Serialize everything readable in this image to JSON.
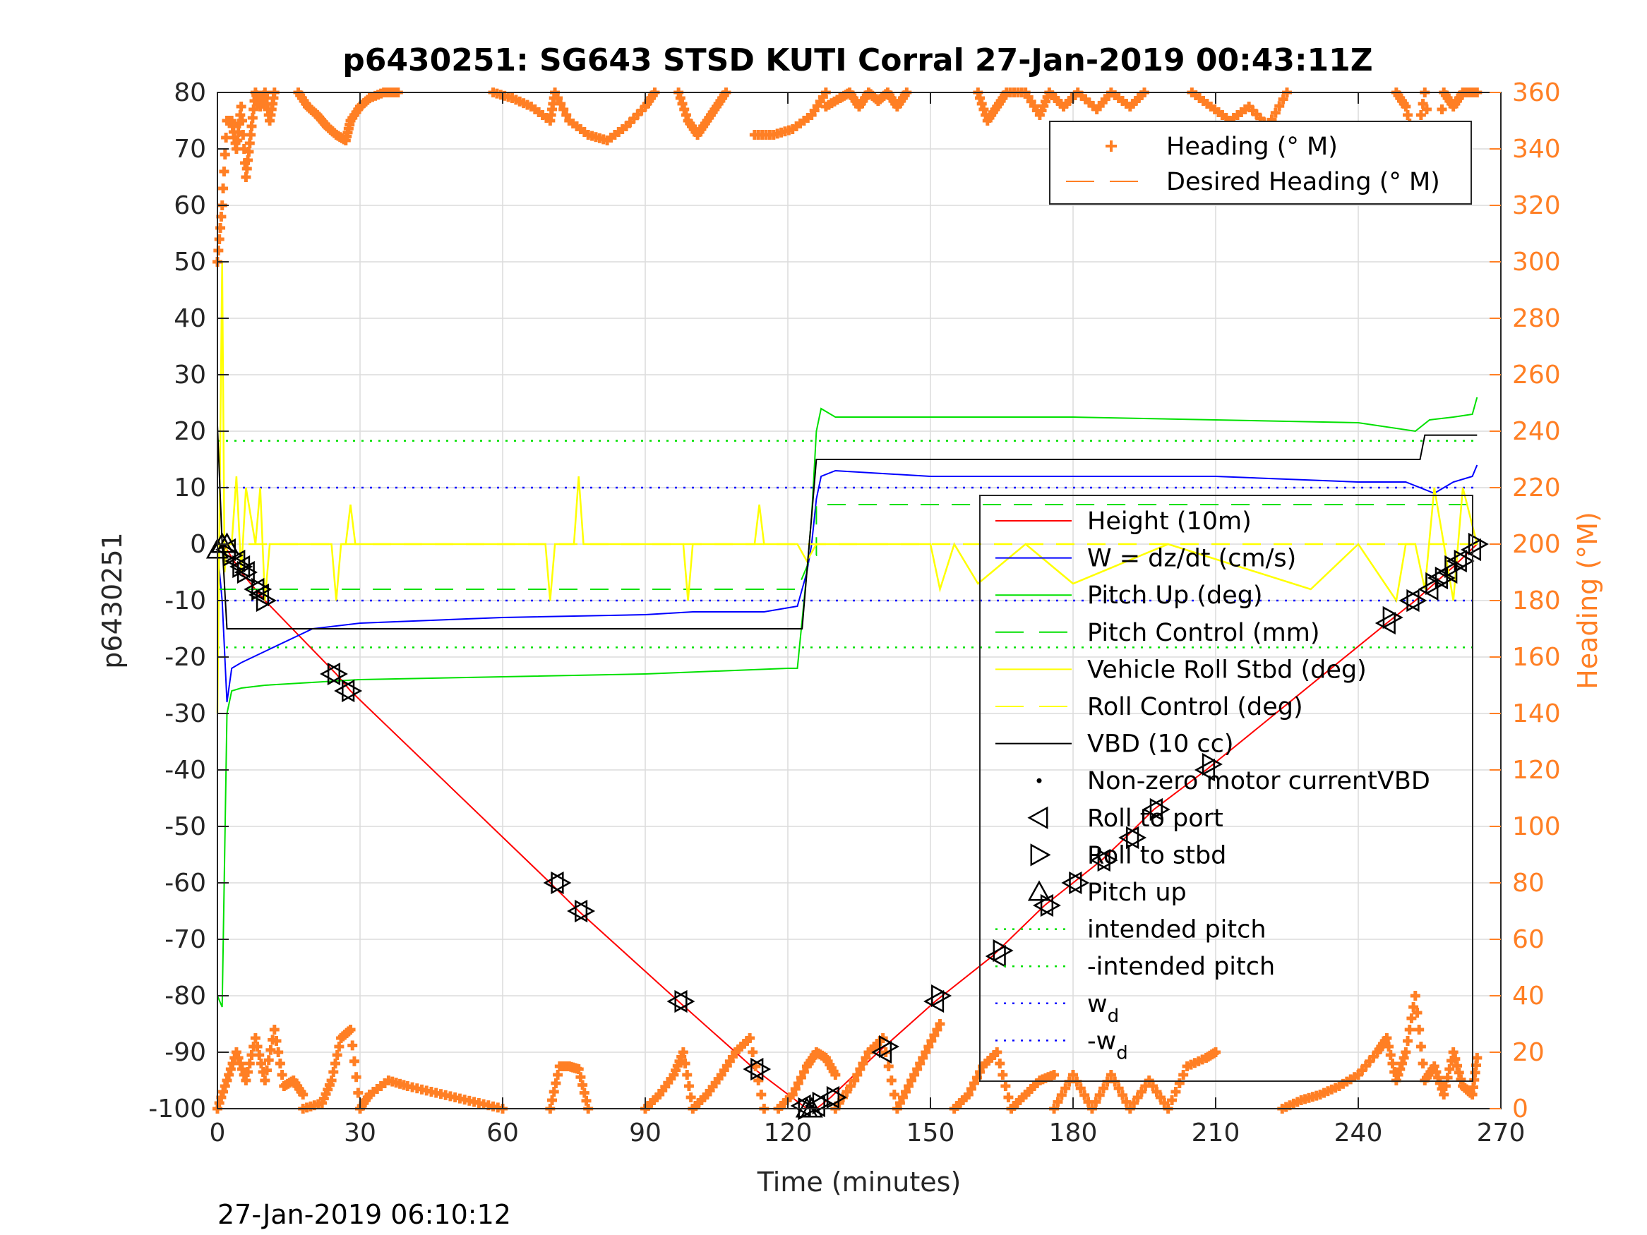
{
  "chart_data": {
    "type": "line",
    "title": "p6430251: SG643 STSD KUTI Corral 27-Jan-2019 00:43:11Z",
    "xlabel": "Time (minutes)",
    "ylabel": "p6430251",
    "y2label": "Heading (°M)",
    "footer": "27-Jan-2019 06:10:12",
    "xlim": [
      0,
      270
    ],
    "ylim": [
      -100,
      80
    ],
    "y2lim": [
      0,
      360
    ],
    "xticks": [
      0,
      30,
      60,
      90,
      120,
      150,
      180,
      210,
      240,
      270
    ],
    "yticks": [
      -100,
      -90,
      -80,
      -70,
      -60,
      -50,
      -40,
      -30,
      -20,
      -10,
      0,
      10,
      20,
      30,
      40,
      50,
      60,
      70,
      80
    ],
    "y2ticks": [
      0,
      20,
      40,
      60,
      80,
      100,
      120,
      140,
      160,
      180,
      200,
      220,
      240,
      260,
      280,
      300,
      320,
      340,
      360
    ],
    "grid": true,
    "legend_top": [
      {
        "label": "Heading (° M)",
        "color": "#ff7f24",
        "style": "plus"
      },
      {
        "label": "Desired Heading (° M)",
        "color": "#ff7f24",
        "style": "dash"
      }
    ],
    "legend_main": [
      {
        "label": "Height (10m)",
        "color": "#ff0000",
        "style": "solid"
      },
      {
        "label": "W = dz/dt (cm/s)",
        "color": "#0000ff",
        "style": "solid"
      },
      {
        "label": "Pitch Up (deg)",
        "color": "#00e000",
        "style": "solid"
      },
      {
        "label": "Pitch Control (mm)",
        "color": "#00e000",
        "style": "dash"
      },
      {
        "label": "Vehicle Roll Stbd (deg)",
        "color": "#ffff00",
        "style": "solid"
      },
      {
        "label": "Roll Control (deg)",
        "color": "#ffff00",
        "style": "dash"
      },
      {
        "label": "VBD (10 cc)",
        "color": "#000000",
        "style": "solid"
      },
      {
        "label": "Non-zero motor currentVBD",
        "color": "#000000",
        "style": "dot"
      },
      {
        "label": "Roll to port",
        "color": "#000000",
        "style": "tri-left"
      },
      {
        "label": "Roll to stbd",
        "color": "#000000",
        "style": "tri-right"
      },
      {
        "label": "Pitch up",
        "color": "#000000",
        "style": "tri-up"
      },
      {
        "label": "intended pitch",
        "color": "#00e000",
        "style": "dotted"
      },
      {
        "label": "-intended pitch",
        "color": "#00e000",
        "style": "dotted"
      },
      {
        "label": "w",
        "sub": "d",
        "color": "#0000ff",
        "style": "dotted"
      },
      {
        "label": "-w",
        "sub": "d",
        "color": "#0000ff",
        "style": "dotted"
      }
    ],
    "series": [
      {
        "name": "Height (10m)",
        "color": "#ff0000",
        "x": [
          0,
          1,
          2,
          5,
          10,
          25,
          28,
          70,
          76,
          97,
          113,
          124,
          126,
          129,
          139,
          151,
          163,
          174,
          180,
          186,
          191,
          197,
          208,
          246,
          252,
          256,
          260,
          265
        ],
        "y": [
          -1,
          0,
          -1,
          -5,
          -10,
          -23,
          -26,
          -60,
          -65,
          -81,
          -93,
          -100,
          -100,
          -98,
          -90,
          -81,
          -73,
          -64,
          -60,
          -56,
          -52,
          -47,
          -40,
          -14,
          -10,
          -7,
          -4,
          0
        ]
      },
      {
        "name": "W = dz/dt (cm/s)",
        "color": "#0000ff",
        "x": [
          0,
          1,
          2,
          3,
          5,
          10,
          20,
          30,
          60,
          90,
          100,
          115,
          122,
          124,
          125,
          126,
          127,
          130,
          150,
          180,
          210,
          240,
          250,
          256,
          260,
          264,
          265
        ],
        "y": [
          -1,
          -10,
          -28,
          -22,
          -21,
          -19,
          -15,
          -14,
          -13,
          -12.5,
          -12,
          -12,
          -11,
          -5,
          0,
          8,
          12,
          13,
          12,
          12,
          12,
          11,
          11,
          9,
          11,
          12,
          14
        ]
      },
      {
        "name": "Pitch Up (deg)",
        "color": "#00e000",
        "x": [
          0,
          1,
          2,
          3,
          5,
          10,
          30,
          60,
          90,
          120,
          122,
          124,
          125,
          126,
          127,
          130,
          150,
          180,
          210,
          240,
          252,
          255,
          260,
          264,
          265
        ],
        "y": [
          -80,
          -82,
          -30,
          -26,
          -25.5,
          -25,
          -24,
          -23.5,
          -23,
          -22,
          -22,
          -5,
          5,
          20,
          24,
          22.5,
          22.5,
          22.5,
          22,
          21.5,
          20,
          22,
          22.5,
          23,
          26
        ]
      },
      {
        "name": "Pitch Control (mm)",
        "color": "#00e000",
        "x": [
          0,
          122,
          122,
          125,
          126,
          126,
          265
        ],
        "y": [
          -8,
          -8,
          -8,
          -2,
          -2,
          7,
          7
        ]
      },
      {
        "name": "Vehicle Roll Stbd (deg)",
        "color": "#ffff00",
        "x": [
          0,
          1,
          1.5,
          2,
          3,
          4,
          5,
          6,
          8,
          9,
          10,
          11,
          24,
          25,
          26,
          27,
          28,
          29,
          30,
          69,
          70,
          71,
          75,
          76,
          77,
          98,
          99,
          100,
          113,
          114,
          115,
          120,
          122,
          124,
          126,
          127,
          130,
          150,
          152,
          155,
          160,
          170,
          180,
          200,
          230,
          240,
          248,
          250,
          252,
          254,
          256,
          258,
          260,
          262,
          265
        ],
        "y": [
          -30,
          50,
          -5,
          0,
          0,
          12,
          -5,
          10,
          0,
          10,
          -10,
          0,
          0,
          -10,
          0,
          0,
          7,
          0,
          0,
          0,
          -10,
          0,
          0,
          12,
          0,
          0,
          -10,
          0,
          0,
          7,
          0,
          0,
          0,
          -3,
          0,
          0,
          0,
          0,
          -8,
          0,
          -7,
          0,
          -7,
          0,
          -8,
          0,
          -10,
          0,
          0,
          -8,
          10,
          0,
          -10,
          10,
          0
        ]
      },
      {
        "name": "Roll Control (deg)",
        "color": "#ffff00",
        "x": [
          0,
          265
        ],
        "y": [
          0,
          0
        ]
      },
      {
        "name": "VBD (10 cc)",
        "color": "#000000",
        "x": [
          0,
          1,
          2,
          123,
          124,
          125,
          126,
          253,
          254,
          265
        ],
        "y": [
          21,
          0,
          -15,
          -15,
          -5,
          5,
          15,
          15,
          19.3,
          19.3
        ]
      },
      {
        "name": "intended pitch",
        "color": "#00e000",
        "x": [
          0,
          265
        ],
        "y": [
          18.3,
          18.3
        ]
      },
      {
        "name": "-intended pitch",
        "color": "#00e000",
        "x": [
          0,
          265
        ],
        "y": [
          -18.3,
          -18.3
        ]
      },
      {
        "name": "w_d",
        "color": "#0000ff",
        "x": [
          0,
          265
        ],
        "y": [
          10,
          10
        ]
      },
      {
        "name": "-w_d",
        "color": "#0000ff",
        "x": [
          0,
          265
        ],
        "y": [
          -10,
          -10
        ]
      }
    ],
    "markers": {
      "port_x": [
        2,
        4,
        5,
        6,
        8,
        9,
        24,
        27,
        71,
        76,
        97,
        113,
        123,
        126,
        129,
        140,
        151,
        164,
        174,
        180,
        186,
        192,
        197,
        208,
        246,
        251,
        255,
        257,
        259,
        261,
        264
      ],
      "port_y": [
        -1,
        -3,
        -4,
        -5,
        -8,
        -9,
        -23,
        -26,
        -60,
        -65,
        -81,
        -93,
        -99.5,
        -99.5,
        -98,
        -90,
        -81,
        -73,
        -64,
        -60,
        -56,
        -52,
        -47,
        -40,
        -14,
        -10,
        -8,
        -6,
        -5,
        -3,
        -1
      ],
      "stbd_x": [
        3,
        5,
        6,
        9,
        10,
        25,
        28,
        72,
        77,
        98,
        114,
        124,
        127,
        130,
        141,
        152,
        165,
        175,
        181,
        187,
        193,
        198,
        209,
        247,
        252,
        256,
        258,
        260,
        262,
        265
      ],
      "stbd_y": [
        -2,
        -4,
        -5,
        -8,
        -10,
        -23,
        -26,
        -60,
        -65,
        -81,
        -93,
        -100,
        -99,
        -98,
        -89,
        -80,
        -72,
        -64,
        -60,
        -56,
        -52,
        -47,
        -39,
        -13,
        -10,
        -7,
        -6,
        -4,
        -3,
        0
      ],
      "pitch_x": [
        0,
        1,
        2,
        124,
        125
      ],
      "pitch_y": [
        -1,
        0,
        0,
        -100,
        -100
      ],
      "vbd_dots_x": [],
      "vbd_dots_y": []
    },
    "heading": {
      "color": "#ff7f24",
      "segments": [
        {
          "x": [
            0,
            1,
            2,
            3,
            4,
            5,
            6,
            7,
            8,
            9,
            10,
            11,
            12
          ],
          "y": [
            300,
            320,
            350,
            350,
            340,
            355,
            330,
            345,
            360,
            355,
            360,
            350,
            360
          ]
        },
        {
          "x": [
            17,
            19,
            21,
            23,
            25,
            27,
            28,
            30,
            32,
            35,
            38
          ],
          "y": [
            360,
            355,
            352,
            348,
            345,
            343,
            350,
            355,
            358,
            360,
            360
          ]
        },
        {
          "x": [
            58,
            62,
            66,
            70,
            71,
            74,
            78,
            82,
            86,
            90,
            92
          ],
          "y": [
            360,
            358,
            355,
            350,
            360,
            350,
            345,
            343,
            348,
            355,
            360
          ]
        },
        {
          "x": [
            97,
            99,
            101,
            103,
            105,
            107
          ],
          "y": [
            360,
            350,
            345,
            350,
            355,
            360
          ]
        },
        {
          "x": [
            113,
            117,
            121,
            125,
            128
          ],
          "y": [
            345,
            345,
            347,
            352,
            360
          ]
        },
        {
          "x": [
            128,
            131,
            133,
            135,
            137,
            139,
            141,
            143,
            145
          ],
          "y": [
            355,
            358,
            360,
            355,
            360,
            357,
            360,
            355,
            360
          ]
        },
        {
          "x": [
            160,
            162,
            164,
            166,
            170,
            173,
            175,
            178,
            181,
            185,
            188,
            192,
            195
          ],
          "y": [
            360,
            350,
            355,
            360,
            360,
            352,
            360,
            355,
            360,
            354,
            360,
            355,
            360
          ]
        },
        {
          "x": [
            205,
            209,
            213,
            217,
            221,
            225
          ],
          "y": [
            360,
            355,
            350,
            355,
            348,
            360
          ]
        },
        {
          "x": [
            248,
            250,
            252,
            254,
            256,
            258,
            260,
            262,
            265
          ],
          "y": [
            360,
            355,
            340,
            360,
            330,
            360,
            355,
            360,
            360
          ]
        },
        {
          "x": [
            0,
            2,
            4,
            6,
            8,
            10,
            12,
            14,
            16,
            18
          ],
          "y": [
            0,
            10,
            20,
            10,
            25,
            10,
            28,
            8,
            10,
            5
          ]
        },
        {
          "x": [
            18,
            22,
            24,
            26,
            28,
            30,
            32,
            36,
            40,
            45,
            50,
            55,
            60
          ],
          "y": [
            0,
            2,
            10,
            25,
            28,
            0,
            5,
            10,
            8,
            6,
            4,
            2,
            0
          ]
        },
        {
          "x": [
            70,
            72,
            74,
            76,
            78
          ],
          "y": [
            0,
            15,
            15,
            14,
            0
          ]
        },
        {
          "x": [
            90,
            93,
            96,
            98,
            100,
            103,
            106,
            109,
            112,
            115
          ],
          "y": [
            0,
            5,
            12,
            20,
            0,
            5,
            12,
            20,
            25,
            0
          ]
        },
        {
          "x": [
            118,
            121,
            124,
            126,
            128,
            130
          ],
          "y": [
            0,
            5,
            15,
            20,
            18,
            12
          ]
        },
        {
          "x": [
            130,
            134,
            137,
            140,
            143,
            146,
            149,
            152
          ],
          "y": [
            0,
            10,
            20,
            25,
            0,
            10,
            20,
            30
          ]
        },
        {
          "x": [
            155,
            158,
            161,
            164,
            167,
            170,
            173,
            176
          ],
          "y": [
            0,
            5,
            15,
            20,
            0,
            5,
            10,
            12
          ]
        },
        {
          "x": [
            176,
            180,
            184,
            188,
            192,
            196,
            200,
            204,
            208,
            210
          ],
          "y": [
            0,
            12,
            0,
            12,
            0,
            10,
            0,
            15,
            18,
            20
          ]
        },
        {
          "x": [
            224,
            228,
            232,
            236,
            240,
            244,
            246,
            248,
            250,
            252,
            254,
            256,
            258,
            260,
            262,
            264,
            265
          ],
          "y": [
            0,
            3,
            5,
            8,
            12,
            20,
            25,
            10,
            20,
            40,
            10,
            15,
            5,
            20,
            8,
            5,
            18
          ]
        }
      ]
    }
  }
}
